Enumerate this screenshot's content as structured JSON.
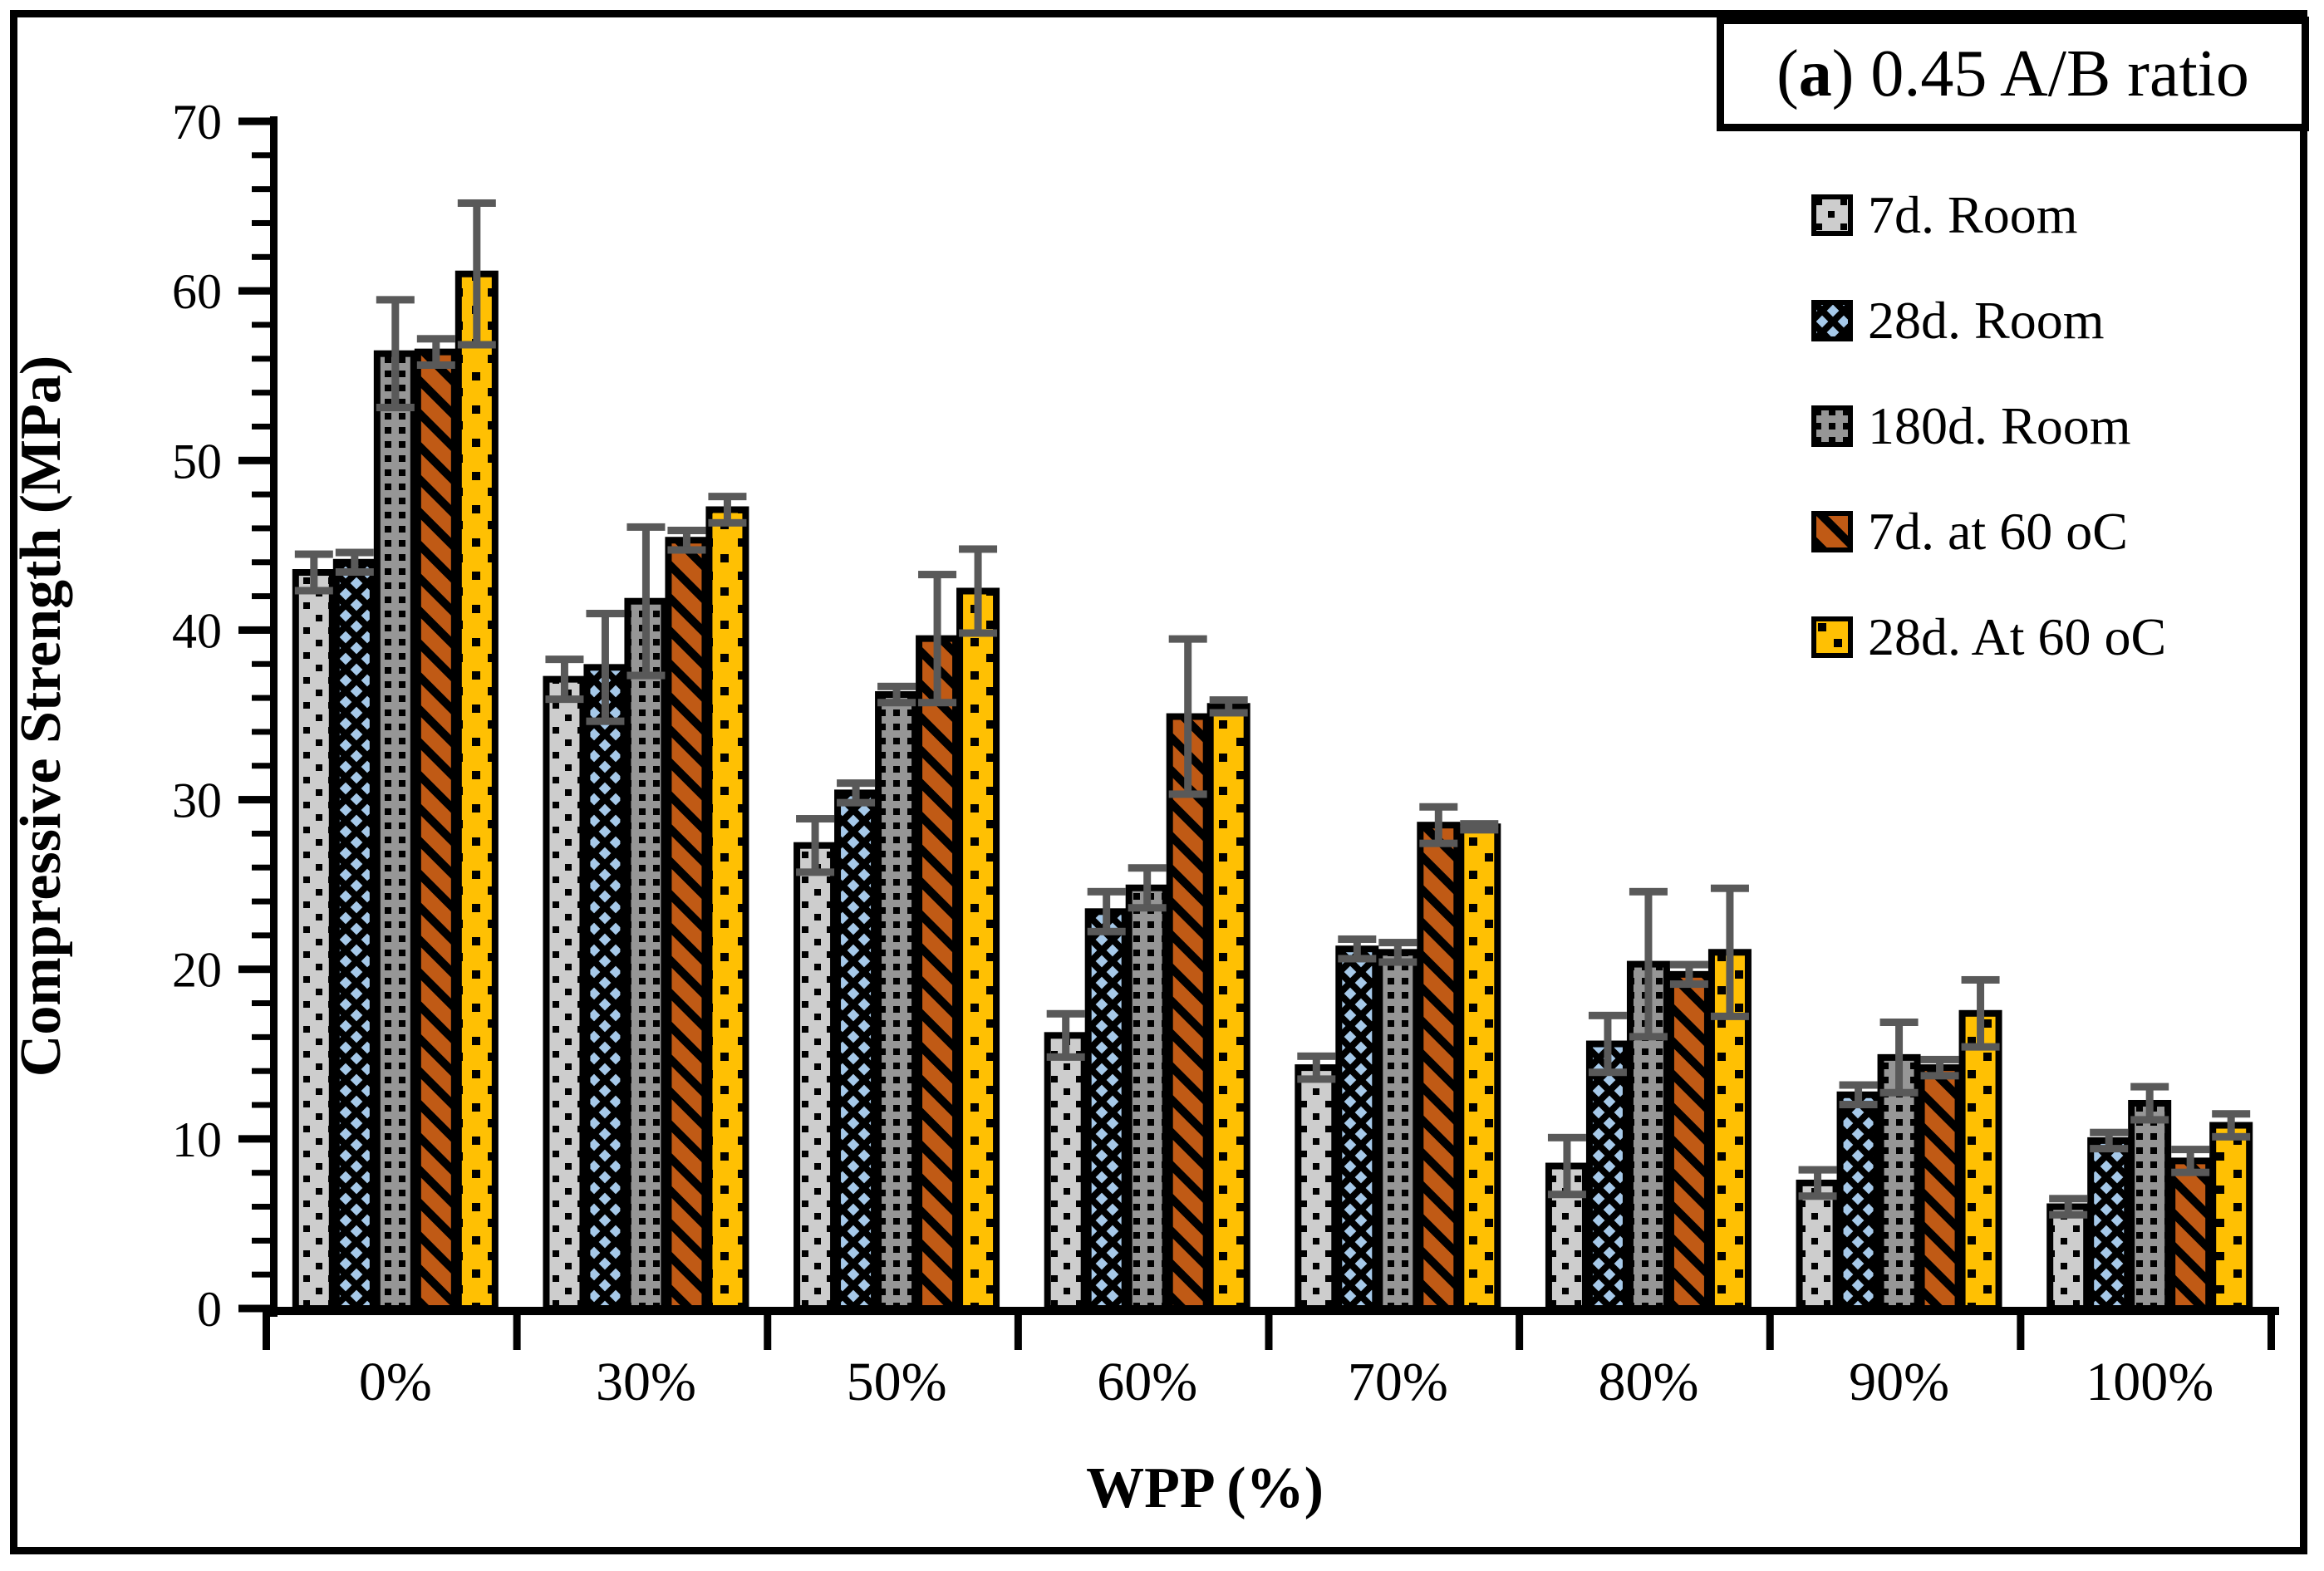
{
  "figure": {
    "panel_title": {
      "prefix": "(",
      "label": "a",
      "suffix": ") 0.45 A/B ratio"
    },
    "y_axis": {
      "label": "Compressive Strength (MPa)",
      "tick_labels": [
        "0",
        "10",
        "20",
        "30",
        "40",
        "50",
        "60",
        "70"
      ]
    },
    "x_axis": {
      "label": "WPP (%)"
    }
  },
  "chart_data": {
    "type": "bar",
    "title": "(a) 0.45 A/B ratio",
    "xlabel": "WPP (%)",
    "ylabel": "Compressive Strength (MPa)",
    "ylim": [
      0,
      70
    ],
    "y_major_step": 10,
    "y_minor_step": 2,
    "grid": false,
    "legend_position": "right-top",
    "error_bar_color": "#595959",
    "categories": [
      "0%",
      "30%",
      "50%",
      "60%",
      "70%",
      "80%",
      "90%",
      "100%"
    ],
    "series": [
      {
        "name": "7d. Room",
        "color": "#cdcdcd",
        "pattern": "dots-small",
        "values": [
          43.4,
          37.1,
          27.3,
          16.1,
          14.2,
          8.4,
          7.4,
          6.0
        ],
        "errors": [
          1.1,
          1.2,
          1.6,
          1.3,
          0.7,
          1.7,
          0.8,
          0.5
        ]
      },
      {
        "name": "28d. Room",
        "color": "#a6c9e9",
        "pattern": "diamond-lattice",
        "values": [
          44.0,
          37.8,
          30.4,
          23.4,
          21.2,
          15.6,
          12.6,
          9.9
        ],
        "errors": [
          0.6,
          3.2,
          0.6,
          1.2,
          0.6,
          1.7,
          0.6,
          0.5
        ]
      },
      {
        "name": "180d. Room",
        "color": "#969696",
        "pattern": "square-grid",
        "values": [
          56.3,
          41.7,
          36.2,
          24.8,
          21.0,
          20.3,
          14.8,
          12.1
        ],
        "errors": [
          3.2,
          4.4,
          0.5,
          1.2,
          0.6,
          4.3,
          2.1,
          1.0
        ]
      },
      {
        "name": "7d. at 60 oC",
        "color": "#c05a15",
        "pattern": "diagonal-stripes",
        "values": [
          56.4,
          45.3,
          39.5,
          34.9,
          28.5,
          19.7,
          14.2,
          8.7
        ],
        "errors": [
          0.8,
          0.6,
          3.8,
          4.6,
          1.1,
          0.6,
          0.5,
          0.7
        ]
      },
      {
        "name": "28d. At 60 oC",
        "color": "#ffc003",
        "pattern": "dots-sparse",
        "values": [
          61.0,
          47.1,
          42.3,
          35.5,
          28.4,
          21.0,
          17.4,
          10.8
        ],
        "errors": [
          4.2,
          0.8,
          2.5,
          0.4,
          0.2,
          3.8,
          2.0,
          0.7
        ]
      }
    ]
  }
}
